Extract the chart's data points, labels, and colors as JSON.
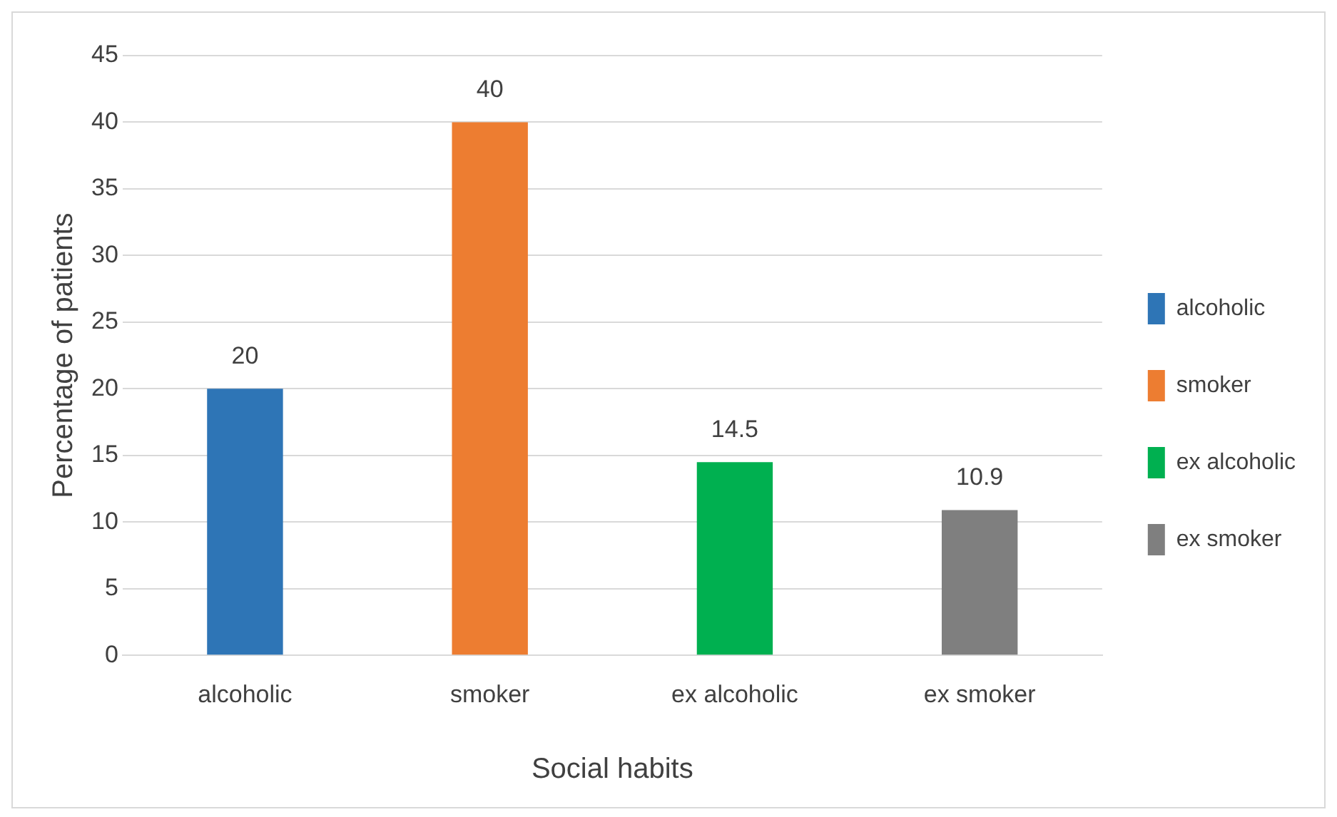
{
  "chart_data": {
    "type": "bar",
    "xlabel": "Social habits",
    "ylabel": "Percentage of patients",
    "categories": [
      "alcoholic",
      "smoker",
      "ex alcoholic",
      "ex smoker"
    ],
    "series": [
      {
        "name": "alcoholic",
        "color": "#2e75b6",
        "values": [
          20,
          null,
          null,
          null
        ]
      },
      {
        "name": "smoker",
        "color": "#ed7d31",
        "values": [
          null,
          40,
          null,
          null
        ]
      },
      {
        "name": "ex alcoholic",
        "color": "#00b050",
        "values": [
          null,
          null,
          14.5,
          null
        ]
      },
      {
        "name": "ex smoker",
        "color": "#7f7f7f",
        "values": [
          null,
          null,
          null,
          10.9
        ]
      }
    ],
    "ylim": [
      0,
      45
    ],
    "yticks": [
      0,
      5,
      10,
      15,
      20,
      25,
      30,
      35,
      40,
      45
    ],
    "grid": "y",
    "legend": "right",
    "data_labels": true
  }
}
